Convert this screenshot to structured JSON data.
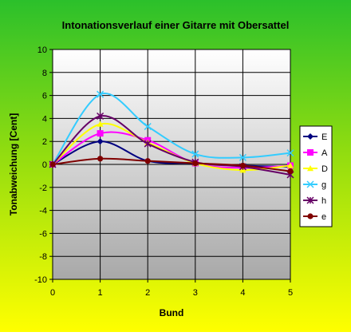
{
  "chart_data": {
    "type": "line",
    "title": "Intonationsverlauf einer Gitarre mit Obersattel",
    "xlabel": "Bund",
    "ylabel": "Tonabweichung [Cent]",
    "x": [
      0,
      1,
      2,
      3,
      4,
      5
    ],
    "xlim": [
      0,
      5
    ],
    "ylim": [
      -10,
      10
    ],
    "ytick_step": 2,
    "grid": true,
    "smooth": true,
    "legend_position": "right",
    "series": [
      {
        "name": "E",
        "color": "#000080",
        "marker": "diamond",
        "values": [
          0,
          2.0,
          0.3,
          0.1,
          -0.1,
          -0.2
        ]
      },
      {
        "name": "A",
        "color": "#ff00ff",
        "marker": "square",
        "values": [
          0,
          2.7,
          2.1,
          0.1,
          -0.3,
          -0.1
        ]
      },
      {
        "name": "D",
        "color": "#ffff00",
        "marker": "triangle",
        "values": [
          0,
          3.5,
          1.9,
          0.1,
          -0.5,
          -0.1
        ]
      },
      {
        "name": "g",
        "color": "#33ccff",
        "marker": "x",
        "values": [
          0,
          6.1,
          3.3,
          0.9,
          0.6,
          1.0
        ]
      },
      {
        "name": "h",
        "color": "#660066",
        "marker": "star",
        "values": [
          0,
          4.2,
          1.8,
          0.2,
          -0.2,
          -0.9
        ]
      },
      {
        "name": "e",
        "color": "#800000",
        "marker": "circle",
        "values": [
          0,
          0.5,
          0.3,
          0.1,
          -0.1,
          -0.6
        ]
      }
    ]
  }
}
